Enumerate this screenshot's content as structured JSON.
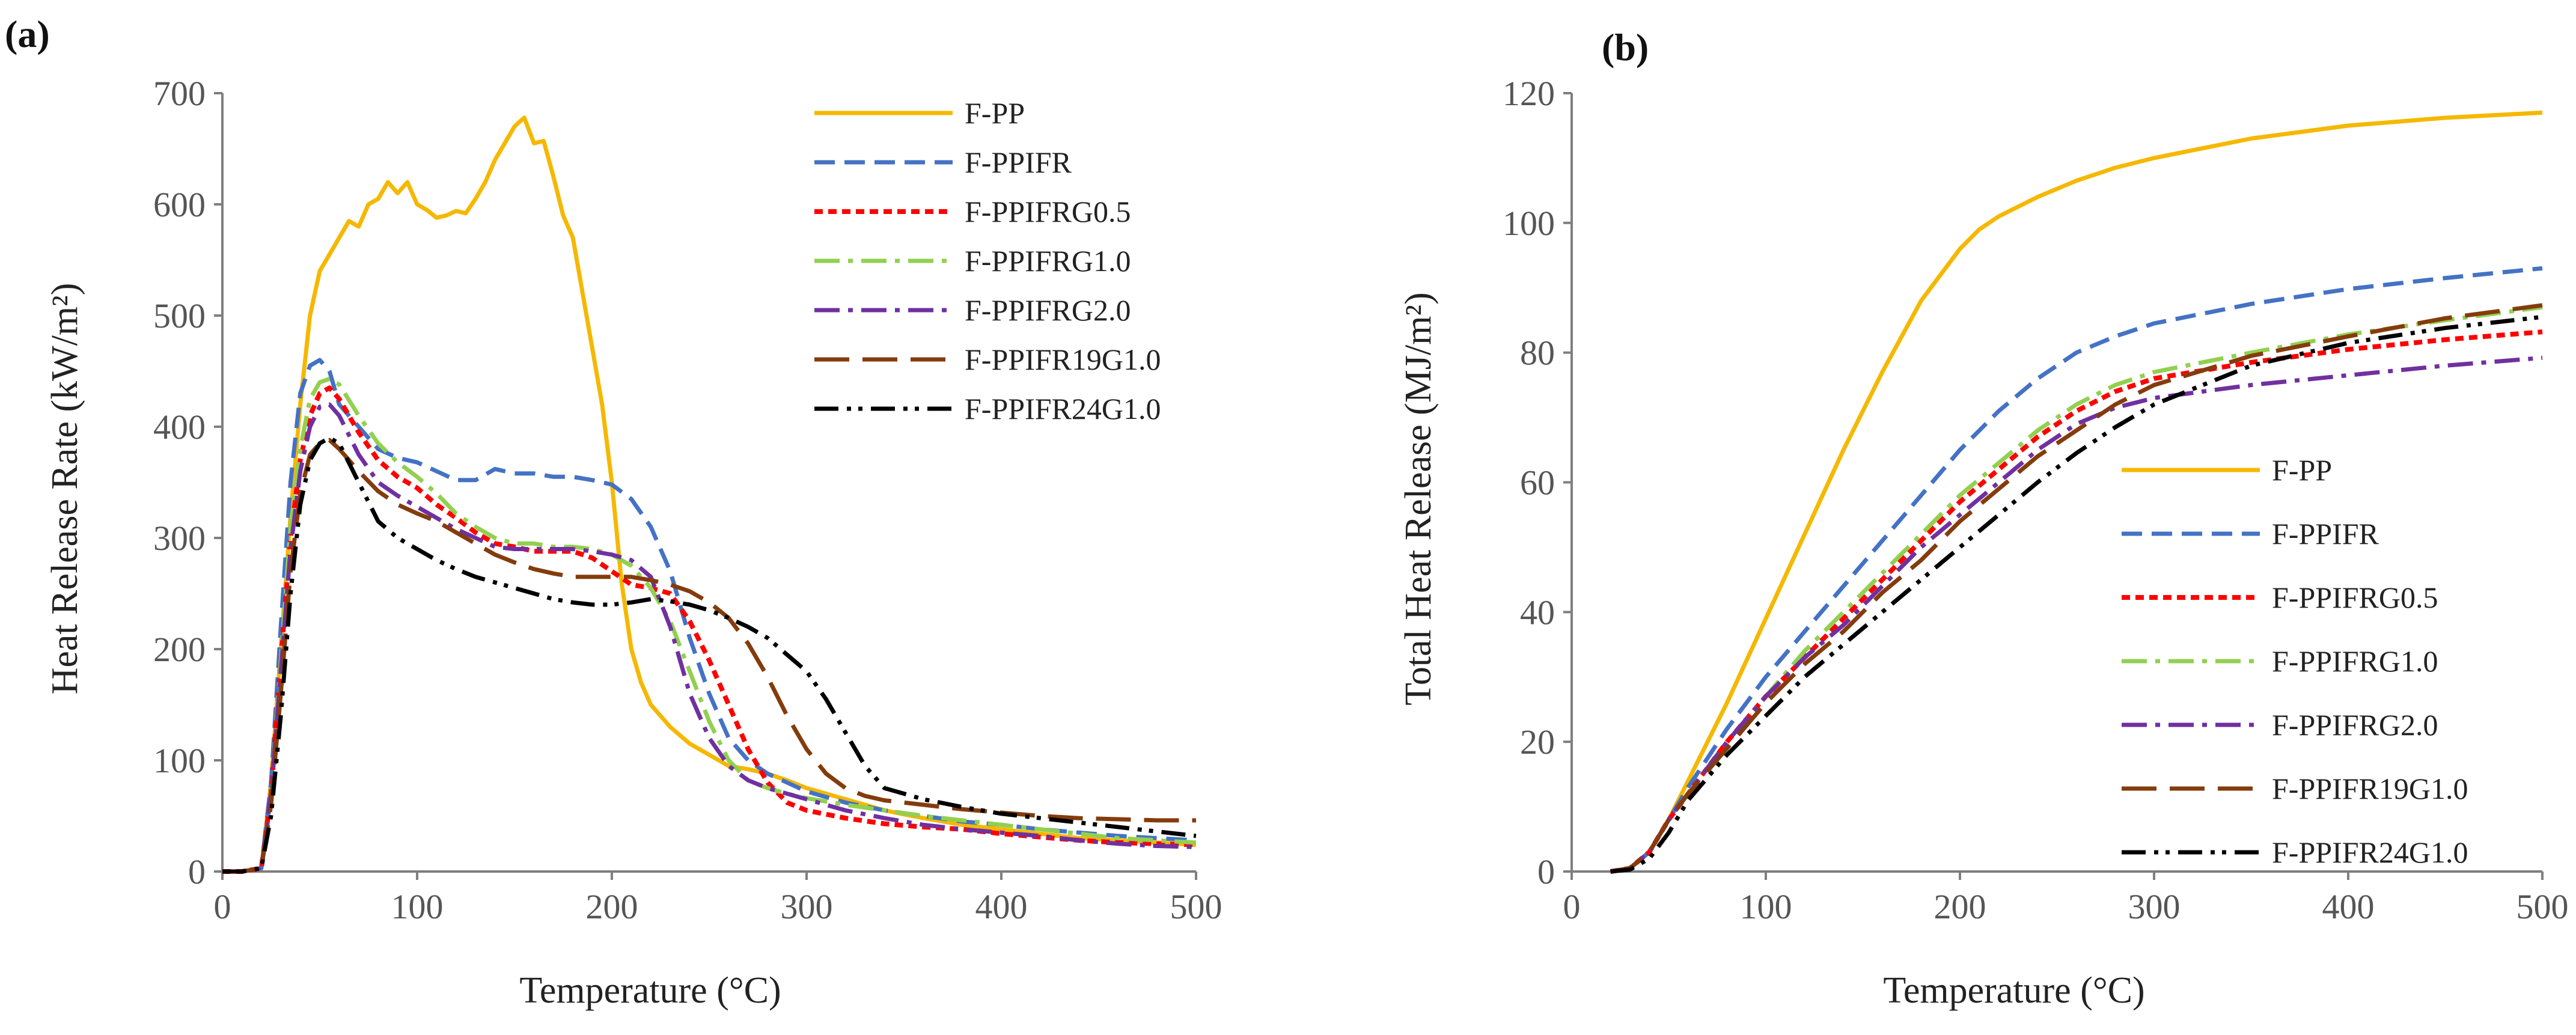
{
  "figure": {
    "panels": [
      {
        "label": "(a)",
        "ylabel": "Heat Release Rate (kW/m²)",
        "xlabel": "Temperature (°C)"
      },
      {
        "label": "(b)",
        "ylabel": "Total Heat Release (MJ/m²)",
        "xlabel": "Temperature (°C)"
      }
    ]
  },
  "chart_data": [
    {
      "type": "line",
      "title": "(a)",
      "xlabel": "Temperature (°C)",
      "ylabel": "Heat Release Rate (kW/m²)",
      "xlim": [
        0,
        500
      ],
      "ylim": [
        0,
        700
      ],
      "xticks": [
        0,
        100,
        200,
        300,
        400,
        500
      ],
      "yticks": [
        0,
        100,
        200,
        300,
        400,
        500,
        600,
        700
      ],
      "legend_position": "top-right",
      "series": [
        {
          "name": "F-PP",
          "color": "#F5B800",
          "dash": "solid",
          "x": [
            0,
            10,
            20,
            25,
            30,
            35,
            40,
            45,
            50,
            55,
            60,
            65,
            70,
            75,
            80,
            85,
            90,
            95,
            100,
            105,
            110,
            115,
            120,
            125,
            130,
            135,
            140,
            145,
            150,
            155,
            160,
            165,
            170,
            175,
            180,
            185,
            190,
            195,
            200,
            205,
            210,
            215,
            220,
            230,
            240,
            250,
            260,
            270,
            280,
            290,
            300,
            320,
            340,
            360,
            380,
            400,
            420,
            440,
            460,
            480,
            500
          ],
          "y": [
            0,
            0,
            3,
            80,
            200,
            320,
            420,
            500,
            540,
            555,
            570,
            585,
            580,
            600,
            605,
            620,
            610,
            620,
            600,
            595,
            588,
            590,
            594,
            592,
            605,
            620,
            640,
            655,
            670,
            678,
            655,
            657,
            625,
            590,
            570,
            520,
            470,
            420,
            350,
            260,
            200,
            170,
            150,
            130,
            115,
            105,
            95,
            92,
            88,
            82,
            75,
            65,
            55,
            48,
            42,
            38,
            34,
            30,
            28,
            26,
            24
          ]
        },
        {
          "name": "F-PPIFR",
          "color": "#4472C4",
          "dash": "dashed",
          "x": [
            0,
            10,
            20,
            25,
            30,
            35,
            40,
            45,
            50,
            55,
            60,
            70,
            80,
            90,
            100,
            110,
            120,
            130,
            140,
            150,
            160,
            170,
            180,
            190,
            200,
            210,
            220,
            230,
            240,
            250,
            260,
            270,
            280,
            290,
            300,
            320,
            340,
            360,
            380,
            400,
            420,
            440,
            460,
            480,
            500
          ],
          "y": [
            0,
            0,
            3,
            80,
            220,
            350,
            430,
            455,
            460,
            450,
            420,
            400,
            380,
            372,
            368,
            360,
            352,
            352,
            362,
            358,
            358,
            355,
            355,
            352,
            348,
            335,
            310,
            270,
            210,
            160,
            120,
            100,
            88,
            80,
            72,
            62,
            55,
            50,
            45,
            42,
            38,
            35,
            32,
            30,
            28
          ]
        },
        {
          "name": "F-PPIFRG0.5",
          "color": "#FF0000",
          "dash": "dotted",
          "x": [
            0,
            10,
            20,
            25,
            30,
            35,
            40,
            45,
            50,
            55,
            60,
            70,
            80,
            90,
            100,
            110,
            120,
            130,
            140,
            150,
            160,
            170,
            180,
            190,
            200,
            210,
            220,
            230,
            240,
            250,
            260,
            270,
            280,
            290,
            300,
            320,
            340,
            360,
            380,
            400,
            420,
            440,
            460,
            480,
            500
          ],
          "y": [
            0,
            0,
            3,
            70,
            190,
            300,
            370,
            410,
            430,
            435,
            425,
            395,
            370,
            355,
            345,
            330,
            318,
            305,
            295,
            292,
            288,
            288,
            288,
            282,
            270,
            258,
            255,
            250,
            225,
            190,
            150,
            110,
            80,
            62,
            55,
            48,
            43,
            40,
            38,
            34,
            31,
            28,
            26,
            25,
            24
          ]
        },
        {
          "name": "F-PPIFRG1.0",
          "color": "#92D050",
          "dash": "dashdot",
          "x": [
            0,
            10,
            20,
            25,
            30,
            35,
            40,
            45,
            50,
            55,
            60,
            70,
            80,
            90,
            100,
            110,
            120,
            130,
            140,
            150,
            160,
            170,
            180,
            190,
            200,
            210,
            220,
            230,
            240,
            250,
            260,
            270,
            280,
            290,
            300,
            320,
            340,
            360,
            380,
            400,
            420,
            440,
            460,
            480,
            500
          ],
          "y": [
            0,
            0,
            3,
            70,
            190,
            310,
            380,
            425,
            440,
            443,
            438,
            410,
            385,
            368,
            355,
            340,
            322,
            310,
            300,
            295,
            295,
            292,
            292,
            290,
            285,
            275,
            255,
            225,
            180,
            135,
            100,
            82,
            75,
            70,
            66,
            60,
            55,
            50,
            46,
            42,
            38,
            34,
            30,
            28,
            26
          ]
        },
        {
          "name": "F-PPIFRG2.0",
          "color": "#7030A0",
          "dash": "dashdot",
          "x": [
            0,
            10,
            20,
            25,
            30,
            35,
            40,
            45,
            50,
            55,
            60,
            70,
            80,
            90,
            100,
            110,
            120,
            130,
            140,
            150,
            160,
            170,
            180,
            190,
            200,
            210,
            220,
            230,
            240,
            250,
            260,
            270,
            280,
            290,
            300,
            320,
            340,
            360,
            380,
            400,
            420,
            440,
            460,
            480,
            500
          ],
          "y": [
            0,
            0,
            3,
            70,
            180,
            290,
            360,
            400,
            418,
            420,
            410,
            375,
            350,
            338,
            328,
            318,
            308,
            300,
            292,
            290,
            290,
            290,
            290,
            288,
            285,
            280,
            265,
            220,
            160,
            120,
            95,
            82,
            75,
            70,
            65,
            55,
            48,
            42,
            38,
            35,
            32,
            28,
            25,
            23,
            22
          ]
        },
        {
          "name": "F-PPIFR19G1.0",
          "color": "#843C0C",
          "dash": "longdash",
          "x": [
            0,
            10,
            20,
            25,
            30,
            35,
            40,
            45,
            50,
            55,
            60,
            70,
            80,
            90,
            100,
            110,
            120,
            130,
            140,
            150,
            160,
            170,
            180,
            190,
            200,
            210,
            220,
            230,
            240,
            250,
            260,
            270,
            280,
            290,
            300,
            310,
            320,
            330,
            340,
            360,
            380,
            400,
            420,
            440,
            460,
            480,
            500
          ],
          "y": [
            0,
            0,
            3,
            60,
            160,
            270,
            340,
            375,
            385,
            388,
            380,
            360,
            342,
            330,
            322,
            315,
            305,
            295,
            285,
            278,
            272,
            268,
            265,
            265,
            265,
            265,
            262,
            258,
            252,
            242,
            228,
            205,
            175,
            140,
            110,
            88,
            75,
            68,
            64,
            60,
            56,
            53,
            50,
            48,
            47,
            46,
            46
          ]
        },
        {
          "name": "F-PPIFR24G1.0",
          "color": "#000000",
          "dash": "dashdotdot",
          "x": [
            0,
            10,
            20,
            25,
            30,
            35,
            40,
            45,
            50,
            55,
            60,
            70,
            80,
            90,
            100,
            110,
            120,
            130,
            140,
            150,
            160,
            170,
            180,
            190,
            200,
            210,
            220,
            230,
            240,
            250,
            260,
            270,
            280,
            290,
            300,
            310,
            320,
            330,
            340,
            350,
            360,
            380,
            400,
            420,
            440,
            460,
            480,
            500
          ],
          "y": [
            0,
            0,
            3,
            50,
            140,
            250,
            330,
            370,
            385,
            390,
            385,
            350,
            315,
            300,
            290,
            280,
            272,
            265,
            260,
            255,
            250,
            245,
            242,
            240,
            240,
            242,
            245,
            243,
            240,
            235,
            228,
            220,
            210,
            195,
            180,
            155,
            125,
            95,
            75,
            70,
            65,
            58,
            52,
            48,
            44,
            40,
            36,
            32
          ]
        }
      ]
    },
    {
      "type": "line",
      "title": "(b)",
      "xlabel": "Temperature (°C)",
      "ylabel": "Total Heat Release (MJ/m²)",
      "xlim": [
        0,
        500
      ],
      "ylim": [
        0,
        120
      ],
      "xticks": [
        0,
        100,
        200,
        300,
        400,
        500
      ],
      "yticks": [
        0,
        20,
        40,
        60,
        80,
        100,
        120
      ],
      "legend_position": "bottom-right",
      "series": [
        {
          "name": "F-PP",
          "color": "#F5B800",
          "dash": "solid",
          "x": [
            20,
            30,
            40,
            50,
            60,
            80,
            100,
            120,
            140,
            160,
            180,
            200,
            210,
            220,
            240,
            260,
            280,
            300,
            350,
            400,
            450,
            500
          ],
          "y": [
            0,
            0.5,
            3,
            8,
            14,
            26,
            39,
            52,
            65,
            77,
            88,
            96,
            99,
            101,
            104,
            106.5,
            108.5,
            110,
            113,
            115,
            116.2,
            117
          ]
        },
        {
          "name": "F-PPIFR",
          "color": "#4472C4",
          "dash": "dashed",
          "x": [
            20,
            30,
            40,
            50,
            60,
            80,
            100,
            120,
            140,
            160,
            180,
            200,
            220,
            240,
            260,
            280,
            300,
            350,
            400,
            450,
            500
          ],
          "y": [
            0,
            0.5,
            3,
            8,
            13,
            22,
            30,
            37,
            44,
            51,
            58,
            65,
            71,
            76,
            80,
            82.5,
            84.5,
            87.5,
            89.8,
            91.5,
            93
          ]
        },
        {
          "name": "F-PPIFRG0.5",
          "color": "#FF0000",
          "dash": "dotted",
          "x": [
            20,
            30,
            40,
            50,
            60,
            80,
            100,
            120,
            140,
            160,
            180,
            200,
            220,
            240,
            260,
            280,
            300,
            350,
            400,
            450,
            500
          ],
          "y": [
            0,
            0.5,
            3,
            8,
            12,
            20,
            27,
            33,
            39,
            45,
            51,
            57,
            62,
            67,
            71,
            74,
            76,
            78.5,
            80.5,
            82,
            83.2
          ]
        },
        {
          "name": "F-PPIFRG1.0",
          "color": "#92D050",
          "dash": "dashdot",
          "x": [
            20,
            30,
            40,
            50,
            60,
            80,
            100,
            120,
            140,
            160,
            180,
            200,
            220,
            240,
            260,
            280,
            300,
            350,
            400,
            450,
            500
          ],
          "y": [
            0,
            0.5,
            3,
            8,
            12,
            20,
            27,
            34,
            40,
            46,
            52,
            58,
            63,
            68,
            72,
            75,
            77,
            80,
            82.8,
            85,
            87
          ]
        },
        {
          "name": "F-PPIFRG2.0",
          "color": "#7030A0",
          "dash": "dashdot",
          "x": [
            20,
            30,
            40,
            50,
            60,
            80,
            100,
            120,
            140,
            160,
            180,
            200,
            220,
            240,
            260,
            280,
            300,
            350,
            400,
            450,
            500
          ],
          "y": [
            0,
            0.5,
            3,
            8,
            12,
            20,
            27,
            33,
            38,
            44,
            50,
            55,
            60,
            65,
            69,
            71.5,
            73,
            75,
            76.5,
            78,
            79.2
          ]
        },
        {
          "name": "F-PPIFR19G1.0",
          "color": "#843C0C",
          "dash": "longdash",
          "x": [
            20,
            30,
            40,
            50,
            60,
            80,
            100,
            120,
            140,
            160,
            180,
            200,
            220,
            240,
            260,
            280,
            300,
            350,
            400,
            450,
            500
          ],
          "y": [
            0,
            0.5,
            3,
            8,
            12,
            19,
            26,
            32,
            37,
            43,
            48,
            54,
            59,
            64,
            68,
            72,
            75,
            79.5,
            82.5,
            85.3,
            87.3
          ]
        },
        {
          "name": "F-PPIFR24G1.0",
          "color": "#000000",
          "dash": "dashdotdot",
          "x": [
            20,
            30,
            40,
            50,
            60,
            80,
            100,
            120,
            140,
            160,
            180,
            200,
            220,
            240,
            260,
            280,
            300,
            350,
            400,
            450,
            500
          ],
          "y": [
            0,
            0.3,
            2,
            6,
            11,
            18,
            24,
            30,
            35,
            40,
            45,
            50,
            55,
            60,
            64.5,
            68.5,
            72,
            78,
            81.5,
            83.8,
            85.5
          ]
        }
      ]
    }
  ]
}
